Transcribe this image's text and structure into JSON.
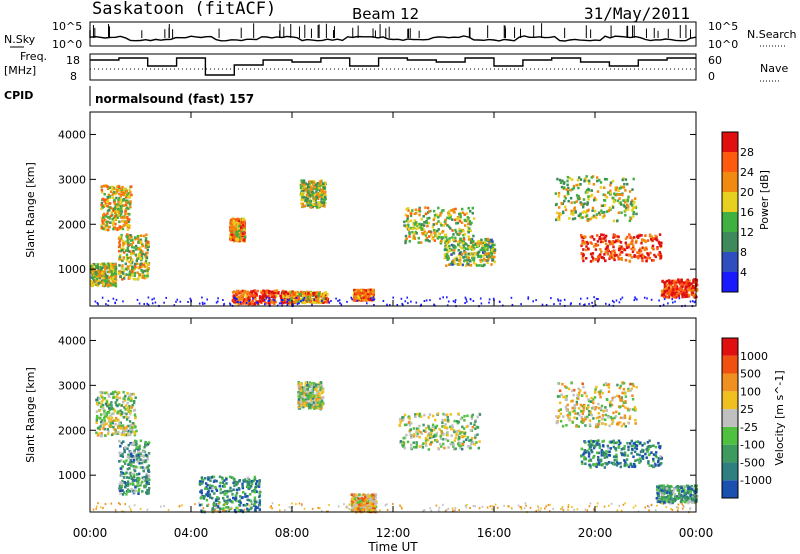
{
  "header": {
    "station": "Saskatoon  (fitACF)",
    "beam": "Beam 12",
    "date": "31/May/2011"
  },
  "panels": {
    "nsky_label": "N.Sky",
    "nsky_ticks": [
      "10^5",
      "10^0"
    ],
    "nsearch_label": "N.Search",
    "nsearch_ticks": [
      "10^5",
      "10^0"
    ],
    "freq_label": "Freq.",
    "freq_unit": "[MHz]",
    "freq_ticks": [
      "18",
      "8"
    ],
    "nave_label": "Nave",
    "nave_ticks": [
      "60",
      "0"
    ],
    "cpid_label": "CPID",
    "cpid_value": "normalsound (fast) 157"
  },
  "chart_data": [
    {
      "type": "heatmap",
      "name": "power",
      "ylabel": "Slant Range [km]",
      "y_ticks": [
        "1000",
        "2000",
        "3000",
        "4000"
      ],
      "ylim": [
        180,
        4500
      ],
      "colorbar_label": "Power [dB]",
      "colorbar_ticks": [
        "4",
        "8",
        "12",
        "16",
        "20",
        "24",
        "28"
      ],
      "colors": [
        "#1a1aff",
        "#2f4fc0",
        "#3f8a5a",
        "#40b040",
        "#e8d020",
        "#f08a10",
        "#ff5a10",
        "#e01010"
      ],
      "blobs": [
        {
          "t": 1.0,
          "r": 2400,
          "dt": 0.6,
          "dr": 500,
          "level": 0.6
        },
        {
          "t": 1.7,
          "r": 1300,
          "dt": 0.6,
          "dr": 500,
          "level": 0.55
        },
        {
          "t": 0.5,
          "r": 900,
          "dt": 0.5,
          "dr": 250,
          "level": 0.5
        },
        {
          "t": 5.8,
          "r": 1900,
          "dt": 0.3,
          "dr": 250,
          "level": 0.7
        },
        {
          "t": 6.8,
          "r": 400,
          "dt": 1.2,
          "dr": 150,
          "level": 0.85
        },
        {
          "t": 8.8,
          "r": 2700,
          "dt": 0.5,
          "dr": 300,
          "level": 0.5
        },
        {
          "t": 8.5,
          "r": 400,
          "dt": 0.9,
          "dr": 120,
          "level": 0.7
        },
        {
          "t": 10.8,
          "r": 450,
          "dt": 0.4,
          "dr": 120,
          "level": 0.75
        },
        {
          "t": 13.8,
          "r": 2000,
          "dt": 1.4,
          "dr": 400,
          "level": 0.55
        },
        {
          "t": 15.0,
          "r": 1400,
          "dt": 1.0,
          "dr": 300,
          "level": 0.45
        },
        {
          "t": 21.0,
          "r": 1500,
          "dt": 1.6,
          "dr": 300,
          "level": 0.9
        },
        {
          "t": 23.4,
          "r": 600,
          "dt": 0.8,
          "dr": 200,
          "level": 0.9
        },
        {
          "t": 20.0,
          "r": 2600,
          "dt": 1.6,
          "dr": 500,
          "level": 0.5
        }
      ]
    },
    {
      "type": "heatmap",
      "name": "velocity",
      "ylabel": "Slant Range [km]",
      "y_ticks": [
        "1000",
        "2000",
        "3000",
        "4000"
      ],
      "ylim": [
        180,
        4500
      ],
      "xlabel": "Time UT",
      "x_ticks": [
        "00:00",
        "04:00",
        "08:00",
        "12:00",
        "16:00",
        "20:00",
        "00:00"
      ],
      "xlim": [
        0,
        24
      ],
      "colorbar_label": "Velocity  [m s^-1]",
      "colorbar_ticks": [
        "1000",
        "500",
        "100",
        "25",
        "-25",
        "-100",
        "-500",
        "-1000"
      ],
      "colors": [
        "#1a50b0",
        "#2f7f80",
        "#3f9a60",
        "#50c040",
        "#c0c0c0",
        "#f0c020",
        "#f09020",
        "#f05010",
        "#e01010"
      ],
      "blobs": [
        {
          "t": 1.0,
          "r": 2400,
          "dt": 0.8,
          "dr": 500,
          "level": 0.45
        },
        {
          "t": 1.7,
          "r": 1200,
          "dt": 0.6,
          "dr": 600,
          "level": 0.3
        },
        {
          "t": 5.5,
          "r": 600,
          "dt": 1.2,
          "dr": 400,
          "level": 0.2
        },
        {
          "t": 8.7,
          "r": 2800,
          "dt": 0.5,
          "dr": 300,
          "level": 0.45
        },
        {
          "t": 10.8,
          "r": 400,
          "dt": 0.5,
          "dr": 200,
          "level": 0.65
        },
        {
          "t": 13.8,
          "r": 2000,
          "dt": 1.6,
          "dr": 400,
          "level": 0.45
        },
        {
          "t": 21.0,
          "r": 1500,
          "dt": 1.6,
          "dr": 300,
          "level": 0.2
        },
        {
          "t": 23.2,
          "r": 600,
          "dt": 0.8,
          "dr": 200,
          "level": 0.3
        },
        {
          "t": 20.0,
          "r": 2600,
          "dt": 1.6,
          "dr": 500,
          "level": 0.55
        }
      ]
    }
  ]
}
